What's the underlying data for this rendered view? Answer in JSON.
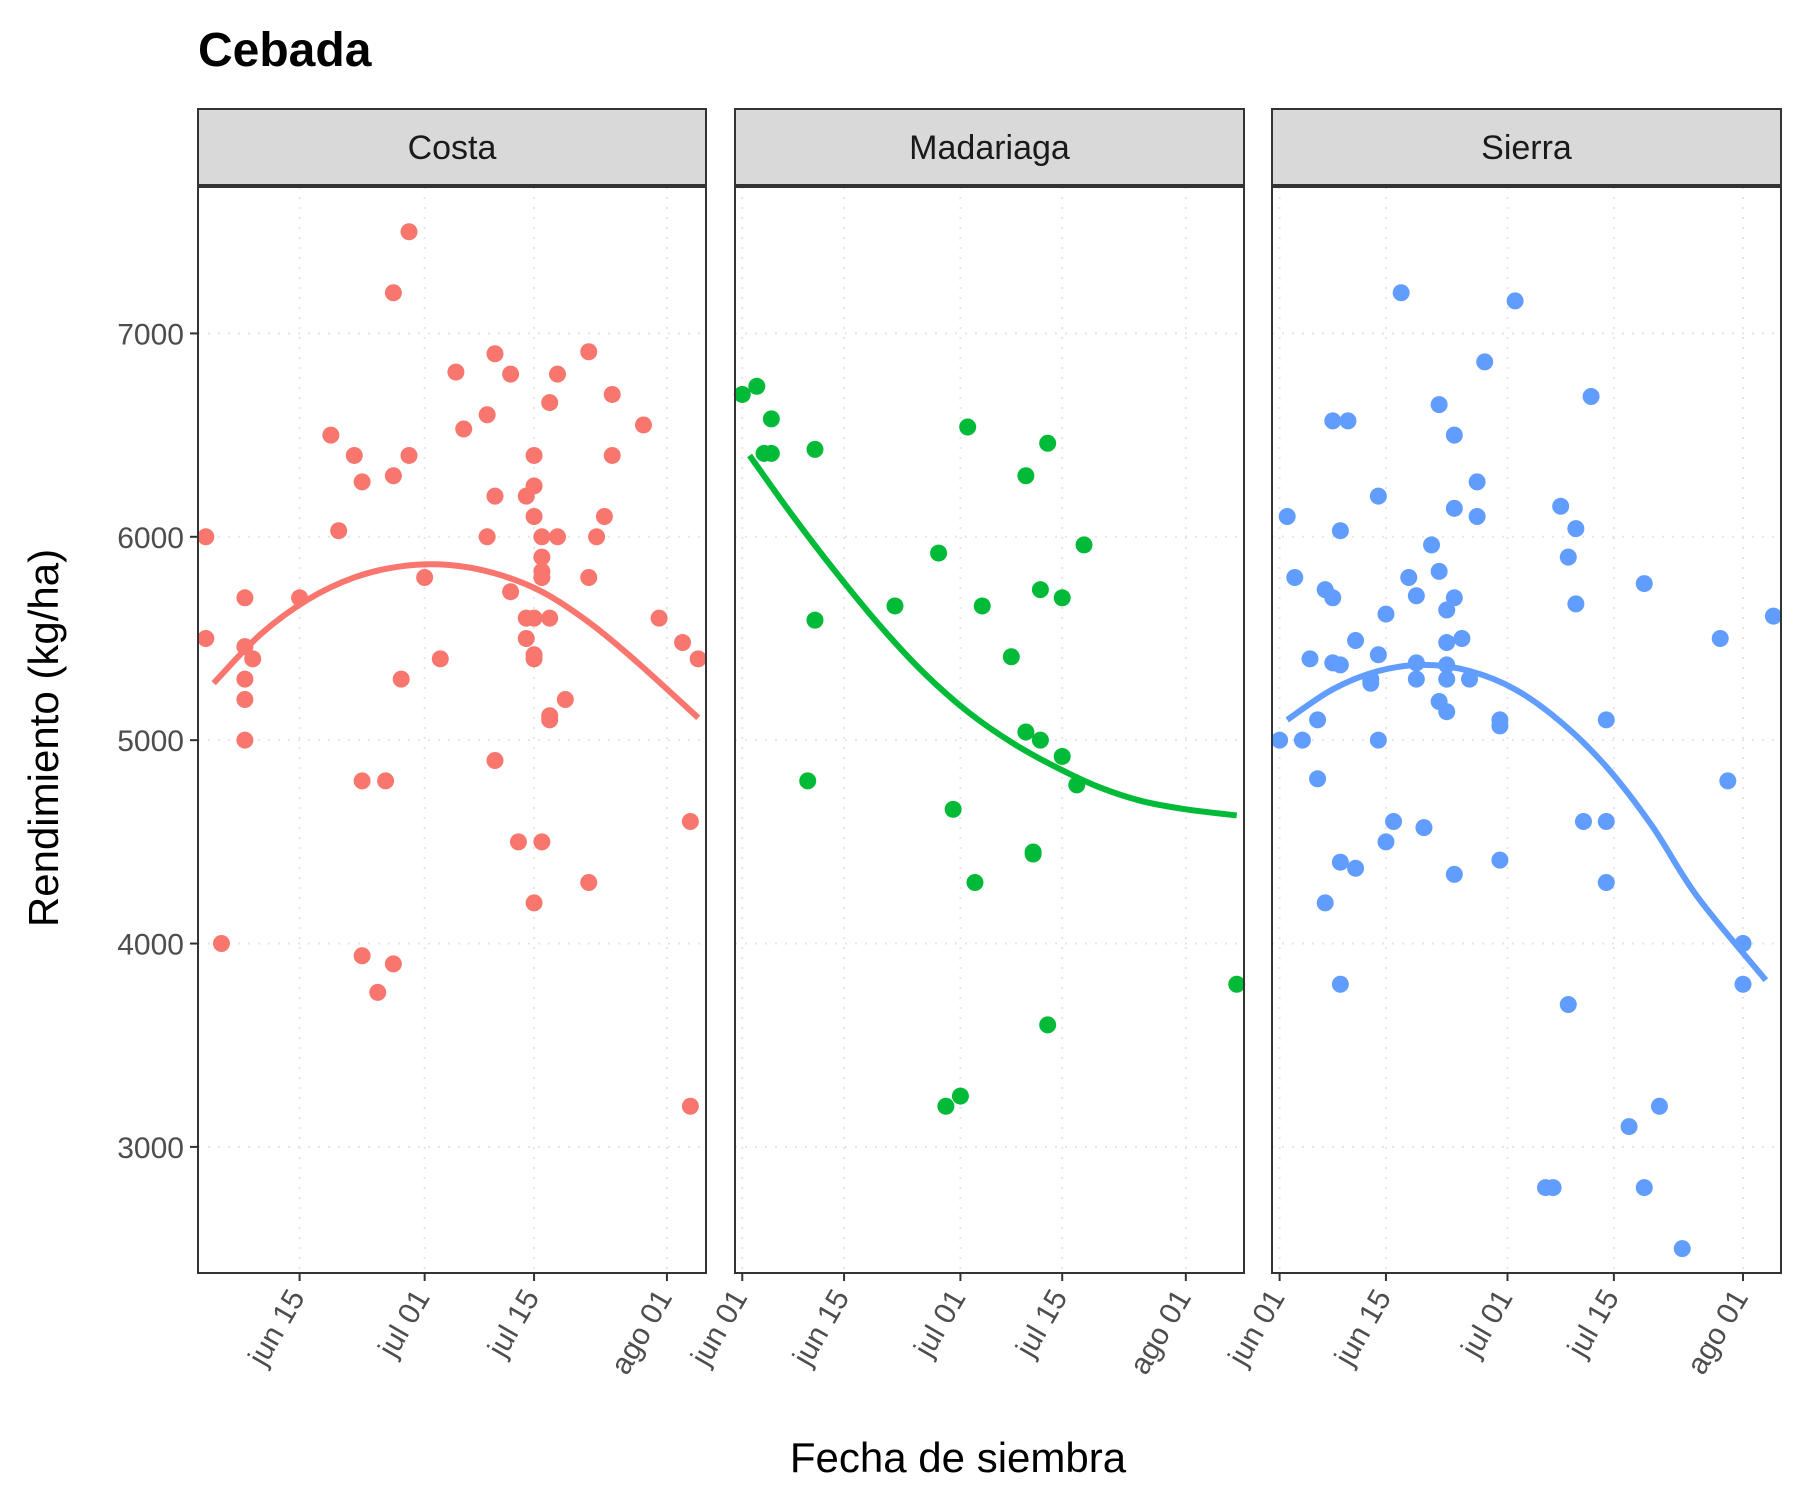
{
  "chart_data": {
    "type": "scatter",
    "title": "Cebada",
    "xlabel": "Fecha de siembra",
    "ylabel": "Rendimiento (kg/ha)",
    "ylim": [
      2380,
      7720
    ],
    "y_ticks": [
      3000,
      4000,
      5000,
      6000,
      7000
    ],
    "y_tick_labels": [
      "3000",
      "4000",
      "5000",
      "6000",
      "7000"
    ],
    "grid": "dotted",
    "colors": {
      "Costa": "#F8766D",
      "Madariaga": "#00BA38",
      "Sierra": "#619CFF"
    },
    "panels": [
      {
        "name": "Costa",
        "color": "#F8766D",
        "xlim": [
          "2024-06-02",
          "2024-08-06"
        ],
        "x_ticks": [
          "2024-06-15",
          "2024-07-01",
          "2024-07-15",
          "2024-08-01"
        ],
        "x_tick_labels": [
          "jun 15",
          "jul 01",
          "jul 15",
          "ago 01"
        ],
        "points": [
          [
            "2024-06-03",
            6000
          ],
          [
            "2024-06-03",
            5500
          ],
          [
            "2024-06-05",
            4000
          ],
          [
            "2024-06-08",
            5700
          ],
          [
            "2024-06-08",
            5460
          ],
          [
            "2024-06-08",
            5300
          ],
          [
            "2024-06-08",
            5200
          ],
          [
            "2024-06-08",
            5000
          ],
          [
            "2024-06-09",
            5400
          ],
          [
            "2024-06-15",
            5700
          ],
          [
            "2024-06-19",
            6500
          ],
          [
            "2024-06-20",
            6030
          ],
          [
            "2024-06-22",
            6400
          ],
          [
            "2024-06-23",
            6270
          ],
          [
            "2024-06-23",
            4800
          ],
          [
            "2024-06-23",
            3940
          ],
          [
            "2024-06-25",
            3760
          ],
          [
            "2024-06-26",
            4800
          ],
          [
            "2024-06-27",
            7200
          ],
          [
            "2024-06-27",
            6300
          ],
          [
            "2024-06-28",
            5300
          ],
          [
            "2024-06-29",
            6400
          ],
          [
            "2024-06-29",
            7500
          ],
          [
            "2024-06-27",
            3900
          ],
          [
            "2024-07-01",
            5800
          ],
          [
            "2024-07-03",
            5400
          ],
          [
            "2024-07-05",
            6810
          ],
          [
            "2024-07-06",
            6530
          ],
          [
            "2024-07-09",
            6600
          ],
          [
            "2024-07-09",
            6000
          ],
          [
            "2024-07-10",
            6900
          ],
          [
            "2024-07-10",
            6200
          ],
          [
            "2024-07-10",
            4900
          ],
          [
            "2024-07-12",
            6800
          ],
          [
            "2024-07-12",
            5730
          ],
          [
            "2024-07-13",
            4500
          ],
          [
            "2024-07-14",
            6200
          ],
          [
            "2024-07-14",
            5600
          ],
          [
            "2024-07-14",
            5500
          ],
          [
            "2024-07-15",
            6400
          ],
          [
            "2024-07-15",
            6250
          ],
          [
            "2024-07-15",
            6100
          ],
          [
            "2024-07-15",
            5420
          ],
          [
            "2024-07-15",
            5400
          ],
          [
            "2024-07-15",
            4200
          ],
          [
            "2024-07-15",
            5600
          ],
          [
            "2024-07-16",
            6000
          ],
          [
            "2024-07-16",
            5900
          ],
          [
            "2024-07-16",
            5830
          ],
          [
            "2024-07-16",
            5800
          ],
          [
            "2024-07-16",
            4500
          ],
          [
            "2024-07-17",
            6660
          ],
          [
            "2024-07-17",
            5120
          ],
          [
            "2024-07-17",
            5100
          ],
          [
            "2024-07-17",
            5600
          ],
          [
            "2024-07-18",
            6800
          ],
          [
            "2024-07-18",
            6000
          ],
          [
            "2024-07-19",
            5200
          ],
          [
            "2024-07-22",
            6910
          ],
          [
            "2024-07-22",
            5800
          ],
          [
            "2024-07-22",
            4300
          ],
          [
            "2024-07-23",
            6000
          ],
          [
            "2024-07-24",
            6100
          ],
          [
            "2024-07-25",
            6700
          ],
          [
            "2024-07-25",
            6400
          ],
          [
            "2024-07-29",
            6550
          ],
          [
            "2024-07-31",
            5600
          ],
          [
            "2024-08-03",
            5480
          ],
          [
            "2024-08-04",
            4600
          ],
          [
            "2024-08-04",
            3200
          ],
          [
            "2024-08-05",
            5400
          ]
        ],
        "fit": [
          [
            "2024-06-04",
            5280
          ],
          [
            "2024-06-10",
            5520
          ],
          [
            "2024-06-16",
            5690
          ],
          [
            "2024-06-22",
            5800
          ],
          [
            "2024-06-28",
            5855
          ],
          [
            "2024-07-04",
            5862
          ],
          [
            "2024-07-10",
            5820
          ],
          [
            "2024-07-16",
            5730
          ],
          [
            "2024-07-22",
            5580
          ],
          [
            "2024-07-28",
            5390
          ],
          [
            "2024-08-05",
            5110
          ]
        ]
      },
      {
        "name": "Madariaga",
        "color": "#00BA38",
        "xlim": [
          "2024-05-31",
          "2024-08-09"
        ],
        "x_ticks": [
          "2024-06-01",
          "2024-06-15",
          "2024-07-01",
          "2024-07-15",
          "2024-08-01"
        ],
        "x_tick_labels": [
          "jun 01",
          "jun 15",
          "jul 01",
          "jul 15",
          "ago 01"
        ],
        "points": [
          [
            "2024-06-01",
            6700
          ],
          [
            "2024-06-03",
            6740
          ],
          [
            "2024-06-04",
            6410
          ],
          [
            "2024-06-05",
            6410
          ],
          [
            "2024-06-05",
            6580
          ],
          [
            "2024-06-10",
            4800
          ],
          [
            "2024-06-11",
            6430
          ],
          [
            "2024-06-11",
            5590
          ],
          [
            "2024-06-22",
            5660
          ],
          [
            "2024-06-28",
            5920
          ],
          [
            "2024-06-30",
            4660
          ],
          [
            "2024-06-29",
            3200
          ],
          [
            "2024-07-01",
            3250
          ],
          [
            "2024-07-02",
            6540
          ],
          [
            "2024-07-03",
            4300
          ],
          [
            "2024-07-04",
            5660
          ],
          [
            "2024-07-08",
            5410
          ],
          [
            "2024-07-10",
            6300
          ],
          [
            "2024-07-10",
            5040
          ],
          [
            "2024-07-11",
            4450
          ],
          [
            "2024-07-11",
            4440
          ],
          [
            "2024-07-12",
            5740
          ],
          [
            "2024-07-12",
            5000
          ],
          [
            "2024-07-13",
            6460
          ],
          [
            "2024-07-13",
            3600
          ],
          [
            "2024-07-15",
            5700
          ],
          [
            "2024-07-15",
            4920
          ],
          [
            "2024-07-17",
            4780
          ],
          [
            "2024-07-18",
            5960
          ],
          [
            "2024-08-08",
            3800
          ]
        ],
        "fit": [
          [
            "2024-06-02",
            6400
          ],
          [
            "2024-06-08",
            6100
          ],
          [
            "2024-06-14",
            5820
          ],
          [
            "2024-06-20",
            5560
          ],
          [
            "2024-06-26",
            5330
          ],
          [
            "2024-07-02",
            5140
          ],
          [
            "2024-07-08",
            4990
          ],
          [
            "2024-07-14",
            4870
          ],
          [
            "2024-07-20",
            4770
          ],
          [
            "2024-07-26",
            4700
          ],
          [
            "2024-08-01",
            4660
          ],
          [
            "2024-08-08",
            4630
          ]
        ]
      },
      {
        "name": "Sierra",
        "color": "#619CFF",
        "xlim": [
          "2024-05-31",
          "2024-08-06"
        ],
        "x_ticks": [
          "2024-06-01",
          "2024-06-15",
          "2024-07-01",
          "2024-07-15",
          "2024-08-01"
        ],
        "x_tick_labels": [
          "jun 01",
          "jun 15",
          "jul 01",
          "jul 15",
          "ago 01"
        ],
        "points": [
          [
            "2024-06-01",
            5000
          ],
          [
            "2024-06-02",
            6100
          ],
          [
            "2024-06-03",
            5800
          ],
          [
            "2024-06-04",
            5000
          ],
          [
            "2024-06-05",
            5400
          ],
          [
            "2024-06-06",
            5100
          ],
          [
            "2024-06-06",
            4810
          ],
          [
            "2024-06-07",
            5740
          ],
          [
            "2024-06-07",
            4200
          ],
          [
            "2024-06-08",
            6570
          ],
          [
            "2024-06-08",
            5380
          ],
          [
            "2024-06-08",
            5700
          ],
          [
            "2024-06-09",
            6030
          ],
          [
            "2024-06-09",
            5370
          ],
          [
            "2024-06-09",
            4400
          ],
          [
            "2024-06-09",
            3800
          ],
          [
            "2024-06-10",
            6570
          ],
          [
            "2024-06-11",
            5490
          ],
          [
            "2024-06-11",
            4370
          ],
          [
            "2024-06-13",
            5300
          ],
          [
            "2024-06-13",
            5280
          ],
          [
            "2024-06-14",
            6200
          ],
          [
            "2024-06-14",
            5420
          ],
          [
            "2024-06-14",
            5000
          ],
          [
            "2024-06-15",
            5620
          ],
          [
            "2024-06-15",
            4500
          ],
          [
            "2024-06-16",
            4600
          ],
          [
            "2024-06-17",
            7200
          ],
          [
            "2024-06-18",
            5800
          ],
          [
            "2024-06-19",
            5710
          ],
          [
            "2024-06-19",
            5380
          ],
          [
            "2024-06-19",
            5300
          ],
          [
            "2024-06-20",
            4570
          ],
          [
            "2024-06-21",
            5960
          ],
          [
            "2024-06-22",
            6650
          ],
          [
            "2024-06-22",
            5830
          ],
          [
            "2024-06-22",
            5190
          ],
          [
            "2024-06-23",
            5640
          ],
          [
            "2024-06-23",
            5480
          ],
          [
            "2024-06-23",
            5370
          ],
          [
            "2024-06-23",
            5300
          ],
          [
            "2024-06-23",
            5140
          ],
          [
            "2024-06-24",
            6500
          ],
          [
            "2024-06-24",
            6140
          ],
          [
            "2024-06-24",
            5700
          ],
          [
            "2024-06-24",
            4340
          ],
          [
            "2024-06-25",
            5500
          ],
          [
            "2024-06-26",
            5300
          ],
          [
            "2024-06-27",
            6270
          ],
          [
            "2024-06-27",
            6100
          ],
          [
            "2024-06-28",
            6860
          ],
          [
            "2024-06-30",
            5100
          ],
          [
            "2024-06-30",
            5070
          ],
          [
            "2024-06-30",
            4410
          ],
          [
            "2024-07-02",
            7160
          ],
          [
            "2024-07-06",
            2800
          ],
          [
            "2024-07-07",
            2800
          ],
          [
            "2024-07-08",
            6150
          ],
          [
            "2024-07-09",
            5900
          ],
          [
            "2024-07-09",
            3700
          ],
          [
            "2024-07-10",
            6040
          ],
          [
            "2024-07-10",
            5670
          ],
          [
            "2024-07-11",
            4600
          ],
          [
            "2024-07-12",
            6690
          ],
          [
            "2024-07-14",
            5100
          ],
          [
            "2024-07-14",
            4600
          ],
          [
            "2024-07-14",
            4300
          ],
          [
            "2024-07-17",
            3100
          ],
          [
            "2024-07-19",
            5770
          ],
          [
            "2024-07-19",
            2800
          ],
          [
            "2024-07-21",
            3200
          ],
          [
            "2024-07-24",
            2500
          ],
          [
            "2024-07-29",
            5500
          ],
          [
            "2024-07-30",
            4800
          ],
          [
            "2024-08-01",
            4000
          ],
          [
            "2024-08-01",
            3800
          ],
          [
            "2024-08-05",
            5610
          ]
        ],
        "fit": [
          [
            "2024-06-02",
            5100
          ],
          [
            "2024-06-08",
            5250
          ],
          [
            "2024-06-14",
            5340
          ],
          [
            "2024-06-20",
            5370
          ],
          [
            "2024-06-26",
            5340
          ],
          [
            "2024-07-02",
            5250
          ],
          [
            "2024-07-08",
            5090
          ],
          [
            "2024-07-14",
            4870
          ],
          [
            "2024-07-20",
            4580
          ],
          [
            "2024-07-26",
            4230
          ],
          [
            "2024-08-04",
            3820
          ]
        ]
      }
    ]
  }
}
